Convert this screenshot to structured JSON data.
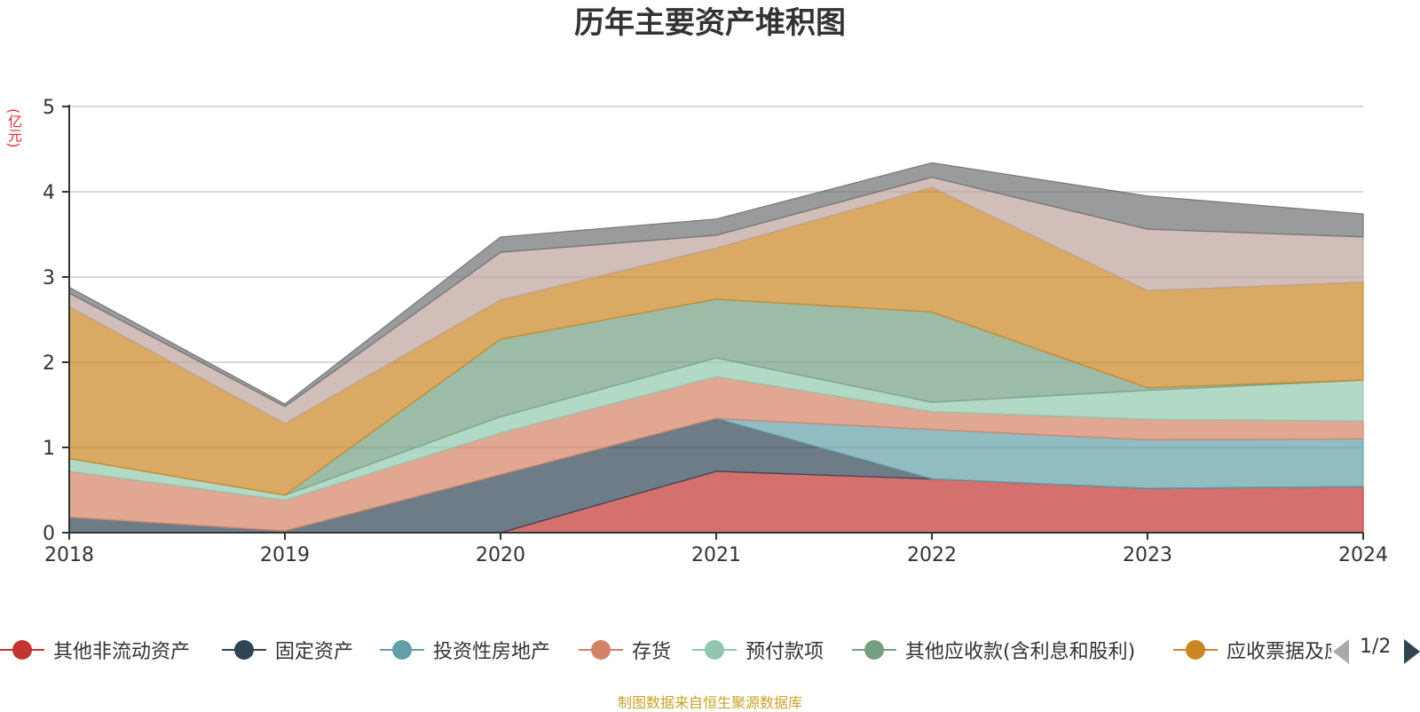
{
  "chart_data": {
    "type": "area",
    "stacked": true,
    "title": "历年主要资产堆积图",
    "ylabel": "(亿元)",
    "ylim": [
      0,
      5
    ],
    "yticks": [
      0,
      1,
      2,
      3,
      4,
      5
    ],
    "grid": true,
    "categories": [
      "2018",
      "2019",
      "2020",
      "2021",
      "2022",
      "2023",
      "2024"
    ],
    "series": [
      {
        "name": "其他非流动资产",
        "color": "#c23531",
        "values": [
          0,
          0,
          0,
          0.72,
          0.63,
          0.52,
          0.54
        ]
      },
      {
        "name": "固定资产",
        "color": "#2f4554",
        "values": [
          0.18,
          0.02,
          0.68,
          0.62,
          0,
          0,
          0
        ]
      },
      {
        "name": "投资性房地产",
        "color": "#61a0a8",
        "values": [
          0,
          0,
          0,
          0,
          0.58,
          0.57,
          0.56
        ]
      },
      {
        "name": "存货",
        "color": "#d48265",
        "values": [
          0.54,
          0.36,
          0.49,
          0.49,
          0.21,
          0.24,
          0.21
        ]
      },
      {
        "name": "预付款项",
        "color": "#91c7ae",
        "values": [
          0.15,
          0.06,
          0.19,
          0.22,
          0.11,
          0.34,
          0.48
        ]
      },
      {
        "name": "其他应收款(含利息和股利)",
        "color": "#749f83",
        "values": [
          0,
          0,
          0.91,
          0.69,
          1.06,
          0.03,
          0
        ]
      },
      {
        "name": "应收票据及应收账款",
        "color": "#ca8622",
        "values": [
          1.78,
          0.84,
          0.46,
          0.6,
          1.46,
          1.14,
          1.15
        ]
      },
      {
        "name": "",
        "color": "#bda29a",
        "values": [
          0.16,
          0.2,
          0.56,
          0.15,
          0.12,
          0.72,
          0.53
        ]
      },
      {
        "name": "",
        "color": "#6e7074",
        "values": [
          0.07,
          0.03,
          0.18,
          0.19,
          0.17,
          0.39,
          0.27
        ]
      }
    ]
  },
  "legend": {
    "visible_labels": [
      "其他非流动资产",
      "固定资产",
      "投资性房地产",
      "存货",
      "预付款项",
      "其他应收款(含利息和股利)",
      "应收票据及应收账款"
    ],
    "page_indicator": "1/2"
  },
  "footer": {
    "note": "制图数据来自恒生聚源数据库"
  }
}
